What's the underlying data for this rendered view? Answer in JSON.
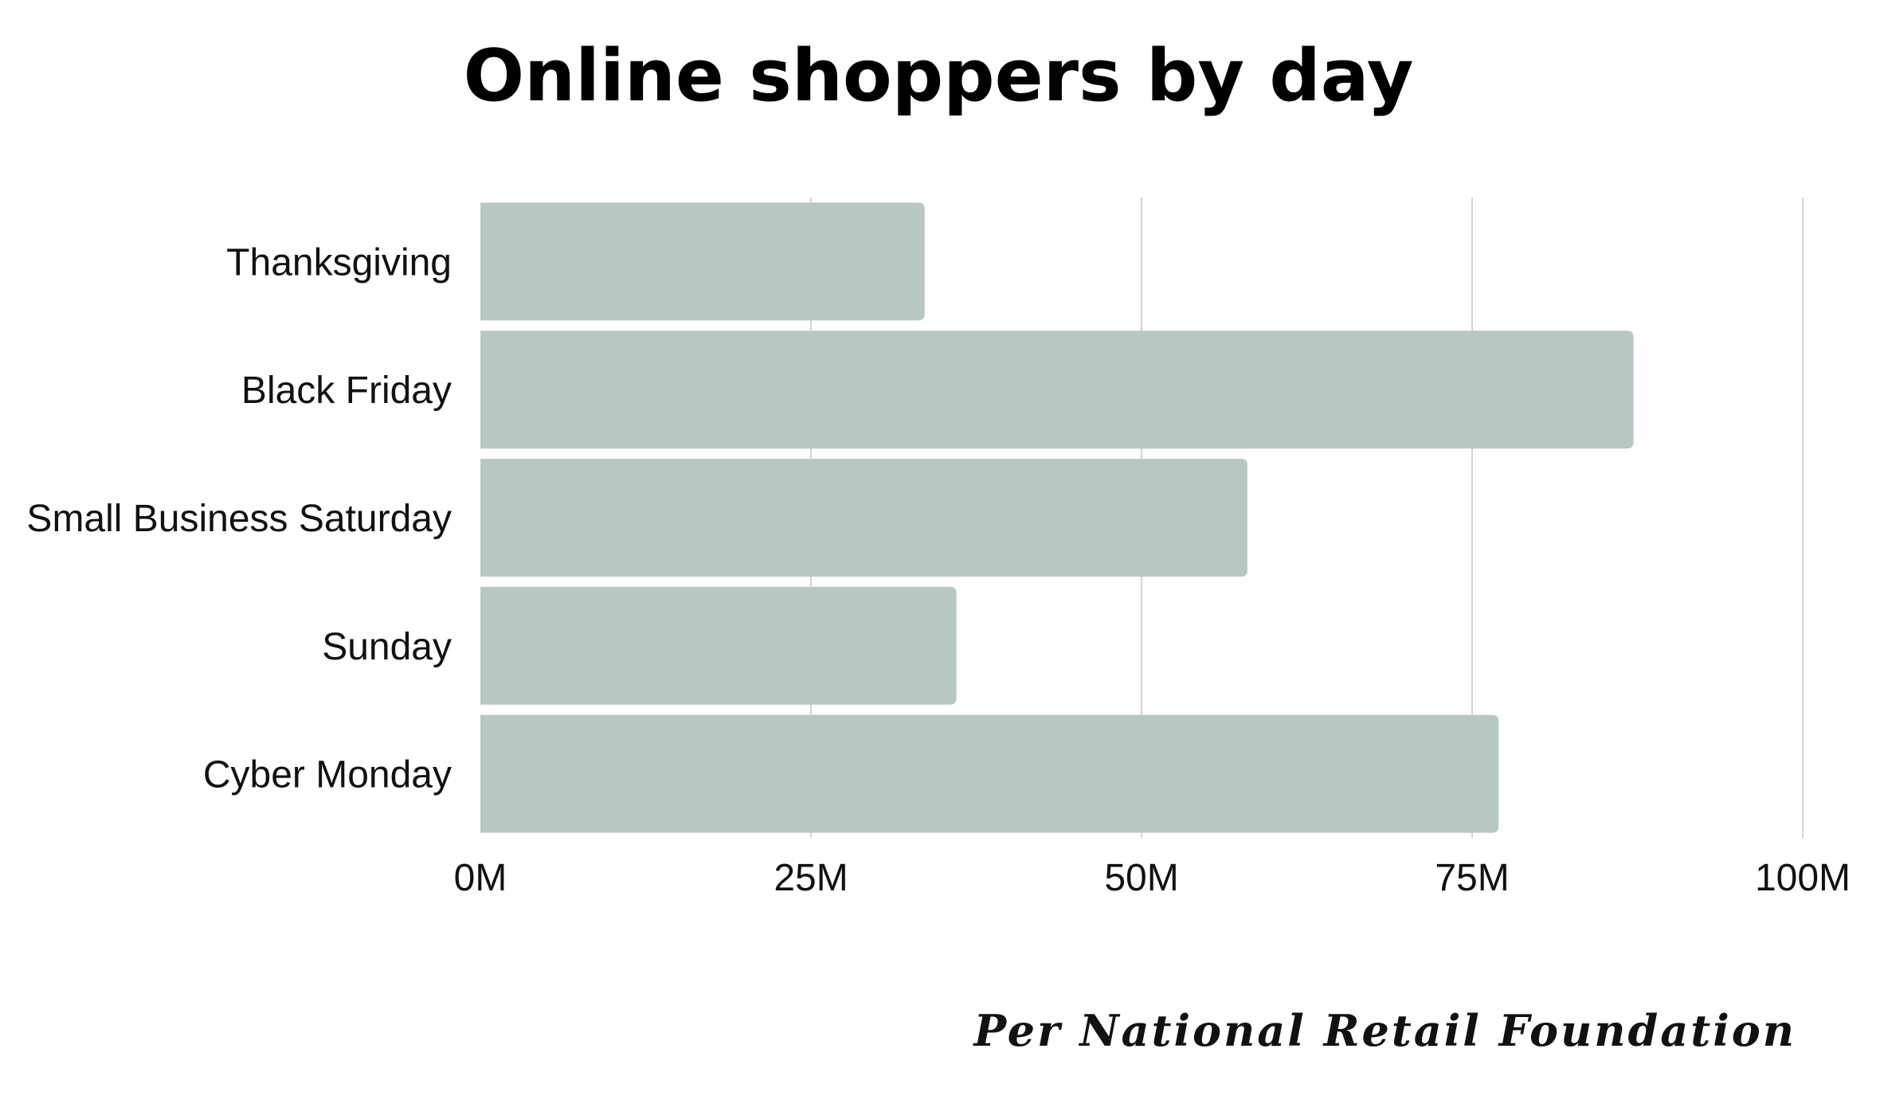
{
  "chart_data": {
    "type": "bar",
    "orientation": "horizontal",
    "title": "Online shoppers by day",
    "categories": [
      "Thanksgiving",
      "Black Friday",
      "Small Business Saturday",
      "Sunday",
      "Cyber Monday"
    ],
    "values": [
      33.6,
      87.2,
      58.0,
      36.0,
      77.0
    ],
    "unit": "M",
    "xlim": [
      0,
      100
    ],
    "ticks": [
      0,
      25,
      50,
      75,
      100
    ],
    "tick_labels": [
      "0M",
      "25M",
      "50M",
      "75M",
      "100M"
    ],
    "grid": true,
    "xlabel": "",
    "ylabel": "",
    "bar_color": "#b7c8c1",
    "source_note": "Per National Retail Foundation"
  }
}
